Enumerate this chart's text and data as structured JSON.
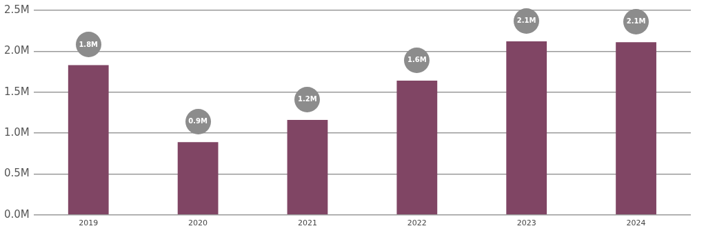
{
  "chart_data": {
    "type": "bar",
    "categories": [
      "2019",
      "2020",
      "2021",
      "2022",
      "2023",
      "2024"
    ],
    "values": [
      1.83,
      0.89,
      1.16,
      1.64,
      2.12,
      2.11
    ],
    "value_labels": [
      "1.8M",
      "0.9M",
      "1.2M",
      "1.6M",
      "2.1M",
      "2.1M"
    ],
    "color": "#804564",
    "ylim": [
      0,
      2.5
    ],
    "yticks": [
      {
        "value": 0,
        "label": "0.0M"
      },
      {
        "value": 0.5,
        "label": "0.5M"
      },
      {
        "value": 1,
        "label": "1.0M"
      },
      {
        "value": 1.5,
        "label": "1.5M"
      },
      {
        "value": 2,
        "label": "2.0M"
      },
      {
        "value": 2.5,
        "label": "2.5M"
      }
    ],
    "grid": "y",
    "legend": false
  }
}
